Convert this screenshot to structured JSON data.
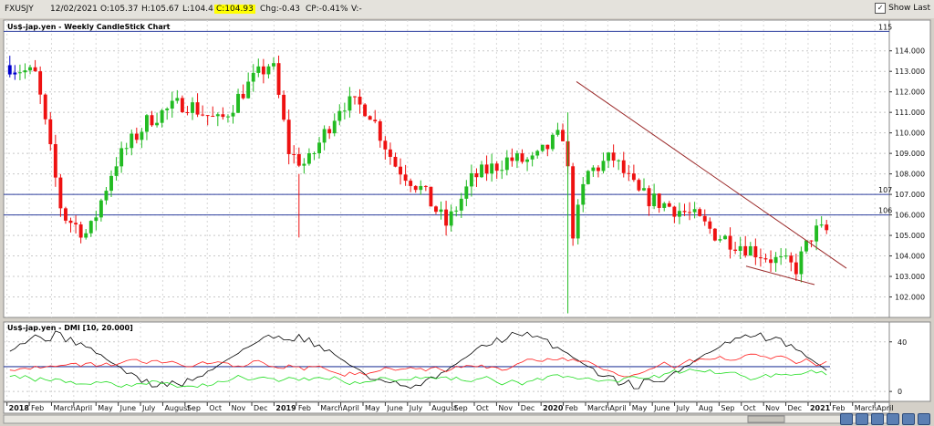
{
  "toolbar": {
    "symbol": "FXUSJY",
    "date": "12/02/2021",
    "open": "O:105.37",
    "high": "H:105.67",
    "low": "L:104.4",
    "close": "C:104.93",
    "chg": "Chg:-0.43",
    "cp": "CP:-0.41%",
    "v": "V:-",
    "show_last": "Show Last",
    "show_last_checked": "✓"
  },
  "chart_data": [
    {
      "type": "candlestick",
      "title": "Us$-jap.yen - Weekly CandleStick Chart",
      "ylim": [
        101,
        115.5
      ],
      "y_ticks": [
        "114.000",
        "113.000",
        "112.000",
        "111.000",
        "110.000",
        "109.000",
        "108.000",
        "107.000",
        "106.000",
        "105.000",
        "104.000",
        "103.000",
        "102.000"
      ],
      "horizontal_lines": [
        {
          "label": "115",
          "value": 114.95
        },
        {
          "label": "107",
          "value": 107.0
        },
        {
          "label": "106",
          "value": 106.0
        }
      ],
      "trendlines": [
        {
          "from": [
            0.0,
            112.5
          ],
          "to": [
            1.0,
            103.4
          ]
        },
        {
          "from": [
            0.0,
            103.5
          ],
          "to": [
            1.0,
            102.6
          ]
        }
      ],
      "colors": {
        "up": "#22bb22",
        "down": "#ee1111",
        "trend": "#9b2a2a",
        "hline": "#2c3e9e",
        "first": "#0000cc"
      }
    },
    {
      "type": "line",
      "title": "Us$-jap.yen - DMI [10, 20.000]",
      "ylim": [
        -8,
        56
      ],
      "y_ticks": [
        "40",
        "0"
      ],
      "horizontal_lines": [
        {
          "value": 20
        }
      ],
      "series": [
        {
          "color": "#000000"
        },
        {
          "color": "#ff2020"
        },
        {
          "color": "#22dd22"
        }
      ]
    }
  ],
  "x_axis": {
    "labels": [
      {
        "text": "2018",
        "bold": true
      },
      {
        "text": "Feb"
      },
      {
        "text": "March"
      },
      {
        "text": "April"
      },
      {
        "text": "May"
      },
      {
        "text": "June"
      },
      {
        "text": "July"
      },
      {
        "text": "August"
      },
      {
        "text": "Sep"
      },
      {
        "text": "Oct"
      },
      {
        "text": "Nov"
      },
      {
        "text": "Dec"
      },
      {
        "text": "2019",
        "bold": true
      },
      {
        "text": "Feb"
      },
      {
        "text": "March"
      },
      {
        "text": "April"
      },
      {
        "text": "May"
      },
      {
        "text": "June"
      },
      {
        "text": "July"
      },
      {
        "text": "August"
      },
      {
        "text": "Sep"
      },
      {
        "text": "Oct"
      },
      {
        "text": "Nov"
      },
      {
        "text": "Dec"
      },
      {
        "text": "2020",
        "bold": true
      },
      {
        "text": "Feb"
      },
      {
        "text": "March"
      },
      {
        "text": "April"
      },
      {
        "text": "May"
      },
      {
        "text": "June"
      },
      {
        "text": "July"
      },
      {
        "text": "Aug"
      },
      {
        "text": "Sep"
      },
      {
        "text": "Oct"
      },
      {
        "text": "Nov"
      },
      {
        "text": "Dec"
      },
      {
        "text": "2021",
        "bold": true
      },
      {
        "text": "Feb"
      },
      {
        "text": "March"
      },
      {
        "text": "April"
      }
    ]
  },
  "nav_icons": [
    "zoom-in-icon",
    "zoom-out-icon",
    "scroll-left-icon",
    "scroll-right-icon",
    "fit-icon",
    "settings-icon"
  ]
}
